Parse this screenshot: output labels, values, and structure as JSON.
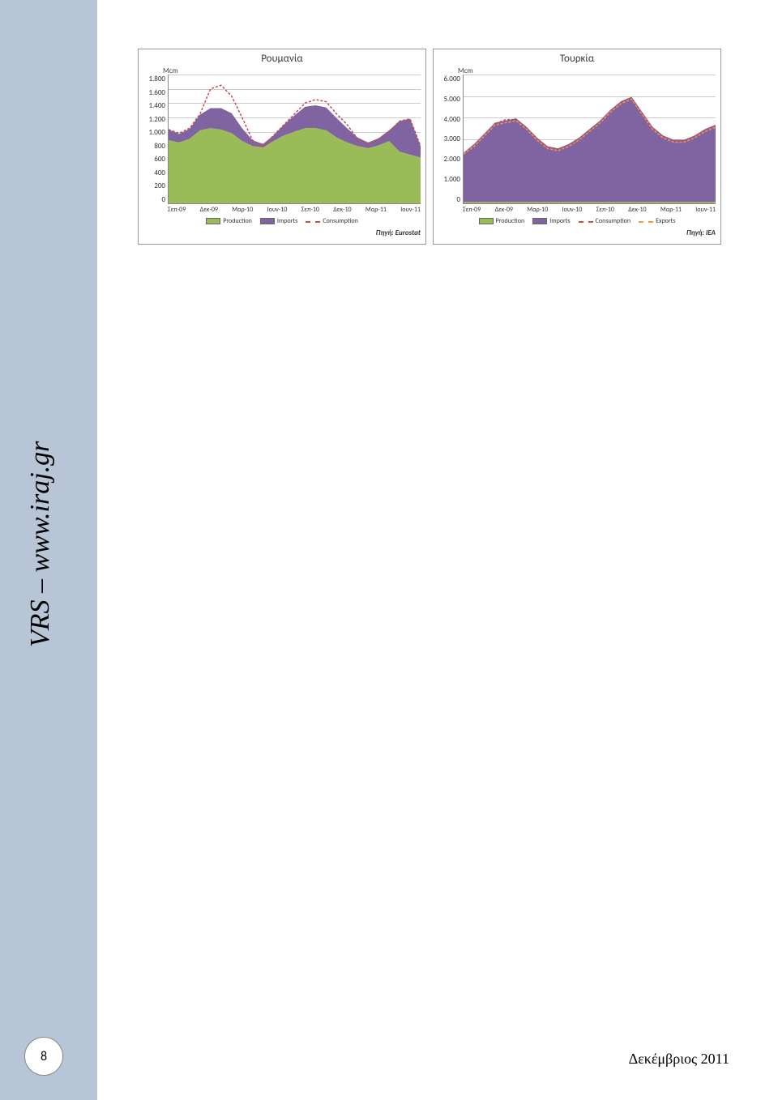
{
  "sidebar": {
    "text": "VRS – www.iraj.gr"
  },
  "page_number": "8",
  "footer_date": "Δεκέμβριος 2011",
  "chart_left": {
    "title": "Ρουμανία",
    "unit": "Mcm",
    "ymax": 1800,
    "ytick_step": 200,
    "yticks": [
      "1.800",
      "1.600",
      "1.400",
      "1.200",
      "1.000",
      "800",
      "600",
      "400",
      "200",
      "0"
    ],
    "xlabels": [
      "Σεπ-09",
      "Δεκ-09",
      "Μαρ-10",
      "Ιουν-10",
      "Σεπ-10",
      "Δεκ-10",
      "Μαρ-11",
      "Ιουν-11"
    ],
    "colors": {
      "production": "#9bbb59",
      "imports": "#8064a2",
      "consumption": "#c0504d",
      "grid": "#cccccc",
      "bg": "#ffffff"
    },
    "series": {
      "production": [
        880,
        850,
        900,
        1020,
        1050,
        1030,
        980,
        870,
        800,
        780,
        870,
        950,
        1000,
        1050,
        1050,
        1020,
        920,
        850,
        800,
        770,
        810,
        870,
        720,
        680,
        640
      ],
      "imports": [
        150,
        120,
        140,
        220,
        280,
        300,
        280,
        180,
        80,
        50,
        80,
        150,
        230,
        300,
        320,
        320,
        270,
        200,
        120,
        80,
        100,
        150,
        430,
        500,
        160
      ],
      "consumption": [
        1030,
        980,
        1050,
        1250,
        1600,
        1650,
        1500,
        1200,
        880,
        800,
        950,
        1100,
        1250,
        1400,
        1450,
        1420,
        1250,
        1100,
        900,
        820,
        900,
        1000,
        1150,
        1180,
        800
      ]
    },
    "legend": [
      {
        "label": "Production",
        "type": "fill",
        "color": "#9bbb59"
      },
      {
        "label": "Imports",
        "type": "fill",
        "color": "#8064a2"
      },
      {
        "label": "Consumption",
        "type": "dash",
        "color": "#c0504d"
      }
    ],
    "source": "Πηγή: Eurostat"
  },
  "chart_right": {
    "title": "Τουρκία",
    "unit": "Mcm",
    "ymax": 6000,
    "ytick_step": 1000,
    "yticks": [
      "6.000",
      "5.000",
      "4.000",
      "3.000",
      "2.000",
      "1.000",
      "0"
    ],
    "xlabels": [
      "Σεπ-09",
      "Δεκ-09",
      "Μαρ-10",
      "Ιουν-10",
      "Σεπ-10",
      "Δεκ-10",
      "Μαρ-11",
      "Ιουν-11"
    ],
    "colors": {
      "production": "#9bbb59",
      "imports": "#8064a2",
      "consumption": "#c0504d",
      "exports": "#f79646",
      "grid": "#cccccc",
      "bg": "#ffffff"
    },
    "series": {
      "production": [
        60,
        60,
        60,
        60,
        60,
        60,
        60,
        60,
        60,
        60,
        60,
        60,
        60,
        60,
        60,
        60,
        60,
        60,
        60,
        60,
        60,
        60,
        60,
        60,
        60
      ],
      "imports": [
        2300,
        2700,
        3200,
        3700,
        3800,
        3900,
        3500,
        3000,
        2600,
        2500,
        2700,
        3000,
        3400,
        3800,
        4300,
        4700,
        4900,
        4200,
        3500,
        3100,
        2900,
        2900,
        3100,
        3400,
        3600
      ],
      "consumption": [
        2300,
        2700,
        3200,
        3700,
        3900,
        3900,
        3500,
        3000,
        2600,
        2500,
        2700,
        3000,
        3400,
        3800,
        4300,
        4700,
        4900,
        4200,
        3500,
        3100,
        2900,
        2900,
        3100,
        3400,
        3600
      ],
      "exports": [
        2300,
        2650,
        3150,
        3650,
        3750,
        3850,
        3450,
        2950,
        2550,
        2450,
        2650,
        2950,
        3350,
        3750,
        4250,
        4650,
        4850,
        4150,
        3450,
        3050,
        2850,
        2850,
        3050,
        3350,
        3550
      ]
    },
    "legend": [
      {
        "label": "Production",
        "type": "fill",
        "color": "#9bbb59"
      },
      {
        "label": "Imports",
        "type": "fill",
        "color": "#8064a2"
      },
      {
        "label": "Consumption",
        "type": "dash",
        "color": "#c0504d"
      },
      {
        "label": "Exports",
        "type": "dash",
        "color": "#f79646"
      }
    ],
    "source": "Πηγή: IEA"
  }
}
